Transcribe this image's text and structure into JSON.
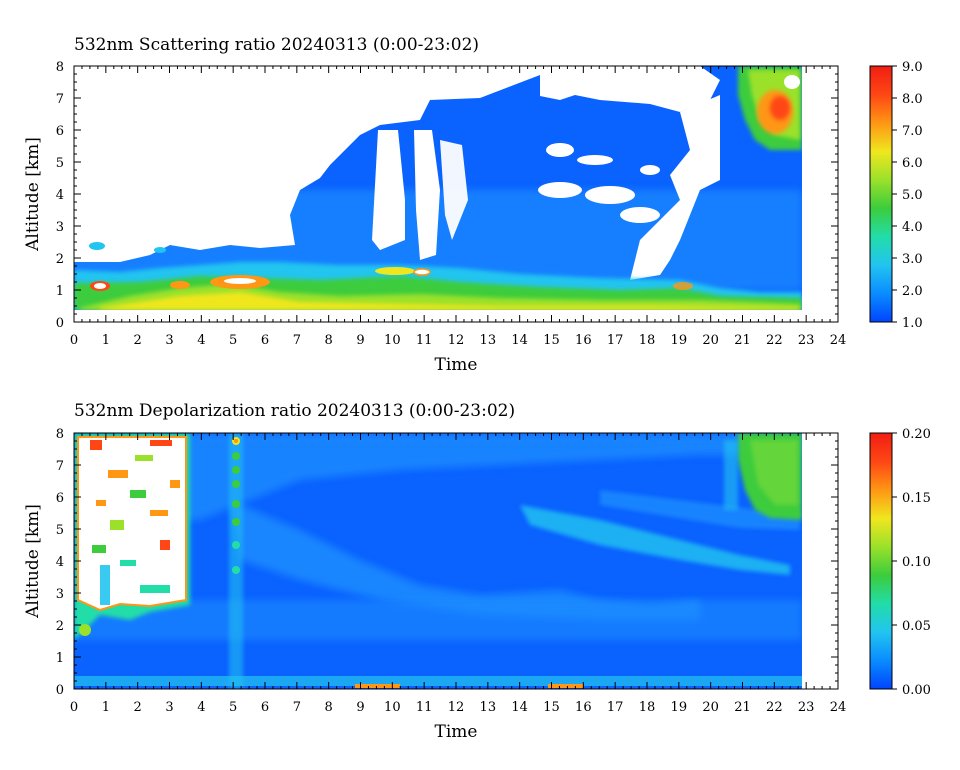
{
  "chart_data": [
    {
      "type": "heatmap",
      "title": "532nm Scattering ratio  20240313 (0:00-23:02)",
      "xlabel": "Time",
      "ylabel": "Altitude [km]",
      "xlim": [
        0,
        24
      ],
      "ylim": [
        0,
        8
      ],
      "x_ticks": [
        0,
        1,
        2,
        3,
        4,
        5,
        6,
        7,
        8,
        9,
        10,
        11,
        12,
        13,
        14,
        15,
        16,
        17,
        18,
        19,
        20,
        21,
        22,
        23,
        24
      ],
      "y_ticks": [
        0,
        1,
        2,
        3,
        4,
        5,
        6,
        7,
        8
      ],
      "data_time_range": [
        0,
        22.8
      ],
      "colorbar": {
        "min": 1.0,
        "max": 9.0,
        "tick_labels": [
          "1.0",
          "2.0",
          "3.0",
          "4.0",
          "5.0",
          "6.0",
          "7.0",
          "8.0",
          "9.0"
        ],
        "colors": [
          "#0044ff",
          "#0a8cff",
          "#22c4f0",
          "#22dda8",
          "#3ccc3c",
          "#9be12a",
          "#f0e61e",
          "#ff9614",
          "#ff4614",
          "#f01e14"
        ]
      },
      "features": {
        "boundary_layer_altitude_km": [
          0.4,
          1.6
        ],
        "high_signal_cloud_time_h": [
          20.8,
          22.8
        ],
        "high_signal_cloud_alt_km": [
          5.5,
          8.0
        ]
      }
    },
    {
      "type": "heatmap",
      "title": "532nm Depolarization ratio  20240313 (0:00-23:02)",
      "xlabel": "Time",
      "ylabel": "Altitude [km]",
      "xlim": [
        0,
        24
      ],
      "ylim": [
        0,
        8
      ],
      "x_ticks": [
        0,
        1,
        2,
        3,
        4,
        5,
        6,
        7,
        8,
        9,
        10,
        11,
        12,
        13,
        14,
        15,
        16,
        17,
        18,
        19,
        20,
        21,
        22,
        23,
        24
      ],
      "y_ticks": [
        0,
        1,
        2,
        3,
        4,
        5,
        6,
        7,
        8
      ],
      "data_time_range": [
        0,
        22.8
      ],
      "colorbar": {
        "min": 0.0,
        "max": 0.2,
        "tick_labels": [
          "0.00",
          "0.05",
          "0.10",
          "0.15",
          "0.20"
        ],
        "colors": [
          "#0044ff",
          "#0a8cff",
          "#22c4f0",
          "#22dda8",
          "#3ccc3c",
          "#9be12a",
          "#f0e61e",
          "#ff9614",
          "#ff4614",
          "#f01e14"
        ]
      },
      "features": {
        "background_value": 0.02,
        "high_depol_cloud_time_h": [
          20.8,
          22.8
        ],
        "high_depol_cloud_alt_km": [
          5.4,
          8.0
        ]
      }
    }
  ]
}
